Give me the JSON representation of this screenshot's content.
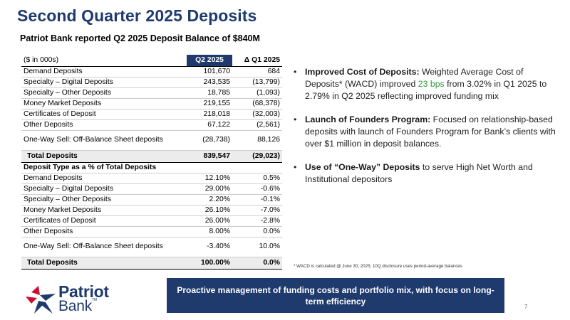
{
  "title": "Second Quarter 2025 Deposits",
  "subtitle": "Patriot Bank reported Q2 2025 Deposit Balance of $840M",
  "table": {
    "header": {
      "label": "($ in 000s)",
      "col1": "Q2 2025",
      "col2": "Δ Q1 2025"
    },
    "balances": [
      {
        "label": "Demand Deposits",
        "q2": "101,670",
        "delta": "684"
      },
      {
        "label": "Specialty – Digital Deposits",
        "q2": "243,535",
        "delta": "(13,799)"
      },
      {
        "label": "Specialty – Other Deposits",
        "q2": "18,785",
        "delta": "(1,093)"
      },
      {
        "label": "Money Market Deposits",
        "q2": "219,155",
        "delta": "(68,378)"
      },
      {
        "label": "Certificates of Deposit",
        "q2": "218,018",
        "delta": "(32,003)"
      },
      {
        "label": "Other Deposits",
        "q2": "67,122",
        "delta": "(2,561)"
      },
      {
        "label": "One-Way Sell: Off-Balance Sheet deposits",
        "q2": "(28,738)",
        "delta": "88,126"
      }
    ],
    "balances_total": {
      "label": "Total Deposits",
      "q2": "839,547",
      "delta": "(29,023)"
    },
    "mix_header": "Deposit Type as a % of Total Deposits",
    "mix": [
      {
        "label": "Demand Deposits",
        "q2": "12.10%",
        "delta": "0.5%"
      },
      {
        "label": "Specialty – Digital Deposits",
        "q2": "29.00%",
        "delta": "-0.6%"
      },
      {
        "label": "Specialty – Other Deposits",
        "q2": "2.20%",
        "delta": "-0.1%"
      },
      {
        "label": "Money Market Deposits",
        "q2": "26.10%",
        "delta": "-7.0%"
      },
      {
        "label": "Certificates of Deposit",
        "q2": "26.00%",
        "delta": "-2.8%"
      },
      {
        "label": "Other Deposits",
        "q2": "8.00%",
        "delta": "0.0%"
      },
      {
        "label": "One-Way Sell: Off-Balance Sheet deposits",
        "q2": "-3.40%",
        "delta": "10.0%"
      }
    ],
    "mix_total": {
      "label": "Total Deposits",
      "q2": "100.00%",
      "delta": "0.0%"
    }
  },
  "bullets": [
    {
      "bold": "Improved Cost of Deposits:",
      "pre": " Weighted Average Cost of Deposits* (WACD) improved ",
      "highlight": "23 bps",
      "post": " from 3.02% in Q1 2025 to 2.79% in Q2 2025 reflecting improved funding mix"
    },
    {
      "bold": "Launch of Founders Program:",
      "text": " Focused on relationship-based deposits with launch of Founders Program for Bank’s clients with over $1 million in deposit balances."
    },
    {
      "bold": "Use of “One-Way” Deposits",
      "text": " to serve High Net Worth and Institutional depositors"
    }
  ],
  "bullet_symbol": "•",
  "footnote": "* WACD is calculated @ June 30, 2025; 10Q disclosure uses period-average balances",
  "logo": {
    "word1": "Patriot",
    "word2": "Bank",
    "tm": "TM"
  },
  "banner": "Proactive management of funding costs and portfolio mix, with focus on long-term efficiency",
  "page_number": "7",
  "colors": {
    "navy": "#1f3b6e",
    "red": "#c8102e",
    "green": "#2e9e3a",
    "total_row": "#ececec"
  }
}
